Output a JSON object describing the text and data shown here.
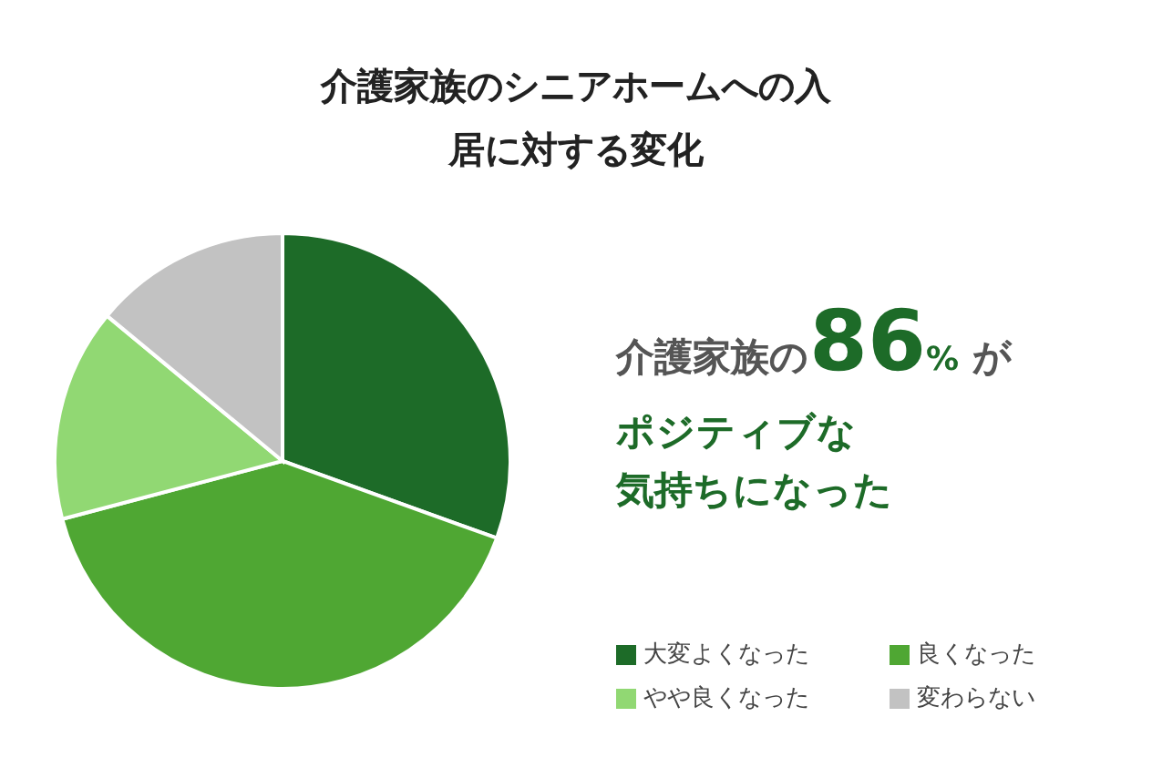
{
  "chart_data": {
    "type": "pie",
    "title": "介護家族のシニアホームへの入居に対する変化",
    "categories": [
      "大変よくなった",
      "良くなった",
      "やや良くなった",
      "変わらない"
    ],
    "values": [
      30.5,
      40.4,
      15.1,
      14.0
    ],
    "colors": [
      "#1d6b28",
      "#4fa733",
      "#91d873",
      "#c2c2c2"
    ],
    "legend": "bottom right",
    "annotations": [
      "介護家族の86% が",
      "ポジティブな",
      "気持ちになった"
    ]
  }
}
